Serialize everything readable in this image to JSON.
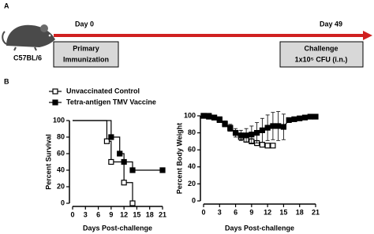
{
  "panel_labels": [
    "A",
    "B"
  ],
  "timeline": {
    "strain": "C57BL/6",
    "start_label": "Day 0",
    "end_label": "Day 49",
    "start_box": [
      "Primary",
      "Immunization"
    ],
    "end_box": [
      "Challenge",
      "1x10⁵ CFU (i.n.)"
    ]
  },
  "chart_data": [
    {
      "type": "step",
      "xlabel": "Days Post-challenge",
      "ylabel": "Percent Survival",
      "xlim": [
        0,
        21
      ],
      "ylim": [
        0,
        100
      ],
      "xticks": [
        0,
        3,
        6,
        9,
        12,
        15,
        18,
        21
      ],
      "yticks": [
        0,
        20,
        40,
        60,
        80,
        100
      ],
      "series": [
        {
          "name": "Unvaccinated Control",
          "color": "#000000",
          "marker": "open-square",
          "x": [
            0,
            8,
            9,
            12,
            14
          ],
          "values": [
            100,
            75,
            50,
            25,
            0
          ]
        },
        {
          "name": "Tetra-antigen TMV Vaccine",
          "color": "#000000",
          "marker": "filled-square",
          "x": [
            0,
            9,
            11,
            12,
            14,
            21
          ],
          "values": [
            100,
            80,
            60,
            50,
            40,
            40
          ]
        }
      ]
    },
    {
      "type": "line",
      "xlabel": "Days Post-challenge",
      "ylabel": "Percent Body Weight",
      "xlim": [
        0,
        21
      ],
      "ylim": [
        0,
        100
      ],
      "xticks": [
        0,
        3,
        6,
        9,
        12,
        15,
        18,
        21
      ],
      "yticks": [
        0,
        20,
        40,
        60,
        80,
        100
      ],
      "series": [
        {
          "name": "Unvaccinated Control",
          "color": "#000000",
          "marker": "open-square",
          "x": [
            0,
            1,
            2,
            3,
            4,
            5,
            6,
            7,
            8,
            9,
            10,
            11,
            12,
            13
          ],
          "values": [
            100,
            99,
            98,
            95,
            90,
            85,
            80,
            75,
            72,
            70,
            68,
            66,
            65,
            65
          ],
          "errors": [
            0,
            1,
            1,
            2,
            2,
            3,
            3,
            3,
            3,
            3,
            3,
            2,
            2,
            2
          ]
        },
        {
          "name": "Tetra-antigen TMV Vaccine",
          "color": "#000000",
          "marker": "filled-square",
          "x": [
            0,
            1,
            2,
            3,
            4,
            5,
            6,
            7,
            8,
            9,
            10,
            11,
            12,
            13,
            14,
            15,
            16,
            17,
            18,
            19,
            20,
            21
          ],
          "values": [
            100,
            100,
            98,
            96,
            91,
            86,
            80,
            77,
            77,
            78,
            80,
            83,
            86,
            88,
            88,
            87,
            95,
            96,
            97,
            98,
            99,
            99
          ],
          "errors": [
            0,
            1,
            1,
            2,
            3,
            4,
            5,
            6,
            8,
            10,
            12,
            14,
            15,
            16,
            17,
            15,
            2,
            2,
            1,
            1,
            1,
            1
          ]
        }
      ]
    }
  ]
}
